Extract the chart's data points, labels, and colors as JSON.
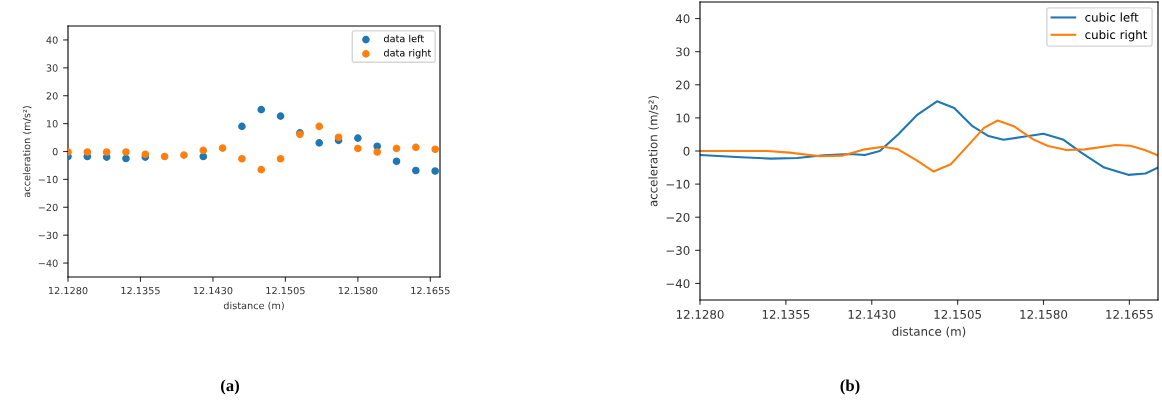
{
  "chart_data": [
    {
      "type": "scatter",
      "xlabel": "distance (m)",
      "ylabel": "acceleration (m/s²)",
      "x": [
        12.128,
        12.13,
        12.132,
        12.134,
        12.136,
        12.138,
        12.14,
        12.142,
        12.144,
        12.146,
        12.148,
        12.15,
        12.152,
        12.154,
        12.156,
        12.158,
        12.16,
        12.162,
        12.164,
        12.166
      ],
      "series": [
        {
          "name": "data left",
          "color": "#1f77b4",
          "values": [
            -1.8,
            -1.8,
            -2,
            -2.5,
            -2,
            null,
            null,
            -1.8,
            null,
            9,
            15,
            12.7,
            6.7,
            3.1,
            4,
            4.8,
            1.9,
            -3.5,
            -6.8,
            -7
          ]
        },
        {
          "name": "data right",
          "color": "#ff7f0e",
          "values": [
            -0.2,
            -0.2,
            -0.2,
            -0.2,
            -1,
            -1.8,
            -1.3,
            0.4,
            1.2,
            -2.6,
            -6.5,
            -2.6,
            6.2,
            9,
            5.1,
            1.1,
            -0.2,
            1.1,
            1.5,
            0.8
          ]
        }
      ],
      "marker": "circle",
      "legend": "top right",
      "grid": false,
      "xlim": [
        12.128,
        12.1665
      ],
      "xticks": [
        {
          "value": 12.128,
          "label": "12.1280"
        },
        12.1355,
        {
          "value": 12.143,
          "label": "12.1430"
        },
        12.1505,
        {
          "value": 12.158,
          "label": "12.1580"
        },
        12.1655
      ],
      "ylim": [
        -45,
        45
      ],
      "yticks": [
        {
          "value": -40,
          "label": "−40"
        },
        {
          "value": -30,
          "label": "−30"
        },
        {
          "value": -20,
          "label": "−20"
        },
        {
          "value": -10,
          "label": "−10"
        },
        0,
        10,
        20,
        30,
        40
      ],
      "annotations": [
        "(a)"
      ]
    },
    {
      "type": "line",
      "xlabel": "distance (m)",
      "ylabel": "acceleration (m/s²)",
      "series": [
        {
          "name": "cubic left",
          "color": "#1f77b4",
          "x": [
            12.128,
            12.1316,
            12.1342,
            12.1365,
            12.1388,
            12.1411,
            12.1424,
            12.1437,
            12.1453,
            12.147,
            12.1487,
            12.1502,
            12.1518,
            12.1532,
            12.1545,
            12.1561,
            12.158,
            12.1597,
            12.1613,
            12.1633,
            12.1654,
            12.1669,
            12.168
          ],
          "values": [
            -1.2,
            -1.9,
            -2.3,
            -2.1,
            -1.3,
            -0.9,
            -1.2,
            0,
            5,
            11,
            15,
            13,
            7.5,
            4.5,
            3.4,
            4.2,
            5.2,
            3.5,
            -0.5,
            -5,
            -7.2,
            -6.8,
            -5
          ]
        },
        {
          "name": "cubic right",
          "color": "#ff7f0e",
          "x": [
            12.128,
            12.1339,
            12.1358,
            12.1385,
            12.1404,
            12.1424,
            12.144,
            12.1453,
            12.147,
            12.1484,
            12.1499,
            12.1515,
            12.1528,
            12.154,
            12.1554,
            12.1571,
            12.1584,
            12.16,
            12.1616,
            12.1643,
            12.1656,
            12.1669,
            12.168
          ],
          "values": [
            0,
            0,
            -0.5,
            -1.6,
            -1.4,
            0.5,
            1.3,
            0.5,
            -3,
            -6.2,
            -4,
            2,
            7,
            9.2,
            7.5,
            3.5,
            1.5,
            0.3,
            0.5,
            1.8,
            1.6,
            0.2,
            -1.3
          ]
        }
      ],
      "marker": "none",
      "line_style": "solid",
      "legend": "top right",
      "grid": false,
      "xlim": [
        12.128,
        12.168
      ],
      "xticks": [
        {
          "value": 12.128,
          "label": "12.1280"
        },
        12.1355,
        {
          "value": 12.143,
          "label": "12.1430"
        },
        12.1505,
        {
          "value": 12.158,
          "label": "12.1580"
        },
        12.1655
      ],
      "ylim": [
        -45,
        45
      ],
      "yticks": [
        {
          "value": -40,
          "label": "−40"
        },
        {
          "value": -30,
          "label": "−30"
        },
        {
          "value": -20,
          "label": "−20"
        },
        {
          "value": -10,
          "label": "−10"
        },
        0,
        10,
        20,
        30,
        40
      ],
      "annotations": [
        "(b)"
      ]
    }
  ]
}
